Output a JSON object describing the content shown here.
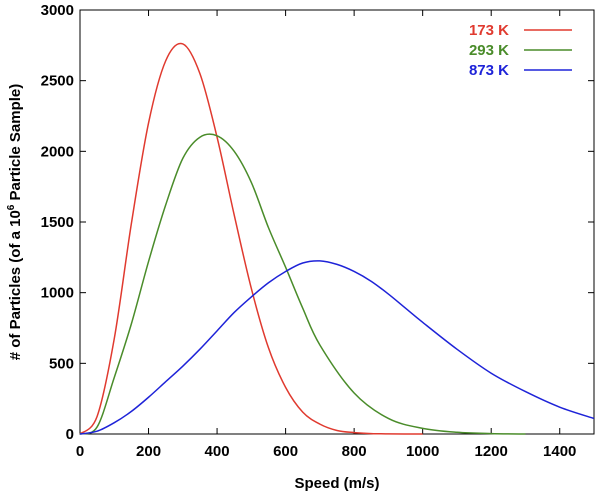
{
  "chart_data": {
    "type": "line",
    "xlabel": "Speed (m/s)",
    "ylabel_prefix": "# of Particles (of a 10",
    "ylabel_sup": "6",
    "ylabel_suffix": " Particle Sample)",
    "xlim": [
      0,
      1500
    ],
    "ylim": [
      0,
      3000
    ],
    "x_ticks": [
      0,
      200,
      400,
      600,
      800,
      1000,
      1200,
      1400
    ],
    "y_ticks": [
      0,
      500,
      1000,
      1500,
      2000,
      2500,
      3000
    ],
    "grid": false,
    "legend_position": "top-right",
    "series": [
      {
        "name": "173 K",
        "color": "#e03a2f",
        "x": [
          0,
          50,
          100,
          150,
          200,
          250,
          300,
          350,
          400,
          450,
          500,
          550,
          600,
          650,
          700,
          750,
          800,
          850,
          900,
          1000
        ],
        "values": [
          0,
          125,
          675,
          1490,
          2200,
          2640,
          2760,
          2550,
          2100,
          1550,
          1030,
          610,
          330,
          155,
          70,
          25,
          10,
          3,
          1,
          0
        ]
      },
      {
        "name": "293 K",
        "color": "#4a8c2a",
        "x": [
          0,
          50,
          100,
          150,
          200,
          250,
          300,
          350,
          400,
          450,
          500,
          550,
          600,
          650,
          700,
          800,
          900,
          1000,
          1100,
          1200,
          1300
        ],
        "values": [
          0,
          50,
          400,
          780,
          1220,
          1620,
          1950,
          2100,
          2110,
          2000,
          1780,
          1460,
          1180,
          890,
          630,
          290,
          110,
          40,
          12,
          3,
          0
        ]
      },
      {
        "name": "873 K",
        "color": "#1e23d8",
        "x": [
          0,
          50,
          100,
          150,
          200,
          250,
          300,
          350,
          400,
          450,
          500,
          550,
          600,
          650,
          700,
          750,
          800,
          850,
          900,
          950,
          1000,
          1100,
          1200,
          1300,
          1400,
          1500
        ],
        "values": [
          0,
          20,
          80,
          160,
          260,
          370,
          480,
          600,
          730,
          860,
          970,
          1070,
          1150,
          1210,
          1225,
          1200,
          1150,
          1080,
          990,
          890,
          790,
          600,
          430,
          300,
          190,
          110
        ]
      }
    ]
  }
}
